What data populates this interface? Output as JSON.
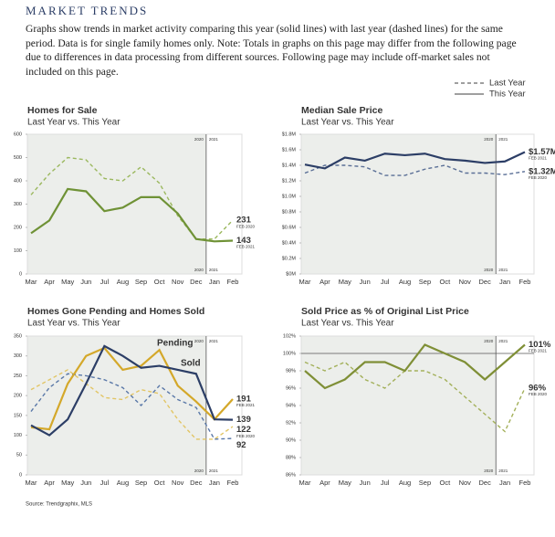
{
  "header": {
    "title": "MARKET TRENDS",
    "description": "Graphs show trends in market activity comparing this year (solid lines) with last year (dashed lines) for the same period. Data is for single family homes only. Note: Totals in graphs on this page may differ from the following page due to differences in data processing from different sources. Following page may include off-market sales not included on this page."
  },
  "legend": [
    {
      "label": "Last Year",
      "dashed": true
    },
    {
      "label": "This Year",
      "dashed": false
    }
  ],
  "source": "Source: Trendgraphix, MLS",
  "chart_data": [
    {
      "type": "line",
      "title": "Homes for Sale",
      "subtitle": "Last Year vs. This Year",
      "categories": [
        "Mar",
        "Apr",
        "May",
        "Jun",
        "Jul",
        "Aug",
        "Sep",
        "Oct",
        "Nov",
        "Dec",
        "Jan",
        "Feb"
      ],
      "ylim": [
        0,
        600
      ],
      "yticks": [
        0,
        100,
        200,
        300,
        400,
        500,
        600
      ],
      "period_labels": [
        "2020",
        "2021"
      ],
      "series": [
        {
          "color": "#9bb85e",
          "dashed": true,
          "values": [
            340,
            430,
            500,
            490,
            410,
            400,
            460,
            390,
            250,
            150,
            150,
            231
          ],
          "end_note": "FEB 2020"
        },
        {
          "color": "#6f9236",
          "dashed": false,
          "values": [
            175,
            230,
            365,
            355,
            270,
            285,
            330,
            330,
            260,
            150,
            140,
            143
          ],
          "end_note": "FEB 2021"
        }
      ]
    },
    {
      "type": "line",
      "title": "Median Sale Price",
      "subtitle": "Last Year vs. This Year",
      "categories": [
        "Mar",
        "Apr",
        "May",
        "Jun",
        "Jul",
        "Aug",
        "Sep",
        "Oct",
        "Nov",
        "Dec",
        "Jan",
        "Feb"
      ],
      "ylim": [
        0,
        1800000
      ],
      "yticks": [
        {
          "value": 0,
          "label": "$0M"
        },
        {
          "value": 200000,
          "label": "$0.2M"
        },
        {
          "value": 400000,
          "label": "$0.4M"
        },
        {
          "value": 600000,
          "label": "$0.6M"
        },
        {
          "value": 800000,
          "label": "$0.8M"
        },
        {
          "value": 1000000,
          "label": "$1.0M"
        },
        {
          "value": 1200000,
          "label": "$1.2M"
        },
        {
          "value": 1400000,
          "label": "$1.4M"
        },
        {
          "value": 1600000,
          "label": "$1.6M"
        },
        {
          "value": 1800000,
          "label": "$1.8M"
        }
      ],
      "period_labels": [
        "2020",
        "2021"
      ],
      "series": [
        {
          "color": "#5a6f96",
          "dashed": true,
          "values": [
            1300000,
            1400000,
            1400000,
            1380000,
            1270000,
            1270000,
            1350000,
            1400000,
            1300000,
            1300000,
            1280000,
            1320000
          ],
          "value_labels": [
            null,
            null,
            null,
            null,
            null,
            null,
            null,
            null,
            null,
            null,
            null,
            "$1.32M"
          ],
          "end_note": "FEB 2020"
        },
        {
          "color": "#2c3e66",
          "dashed": false,
          "values": [
            1410000,
            1360000,
            1500000,
            1460000,
            1550000,
            1530000,
            1550000,
            1480000,
            1460000,
            1430000,
            1450000,
            1570000
          ],
          "value_labels": [
            null,
            null,
            null,
            null,
            null,
            null,
            null,
            null,
            null,
            null,
            null,
            "$1.57M"
          ],
          "end_note": "FEB 2021"
        }
      ]
    },
    {
      "type": "line",
      "title": "Homes Gone Pending and Homes Sold",
      "subtitle": "Last Year vs. This Year",
      "categories": [
        "Mar",
        "Apr",
        "May",
        "Jun",
        "Jul",
        "Aug",
        "Sep",
        "Oct",
        "Nov",
        "Dec",
        "Jan",
        "Feb"
      ],
      "ylim": [
        0,
        350
      ],
      "yticks": [
        0,
        50,
        100,
        150,
        200,
        250,
        300,
        350
      ],
      "period_labels": [
        "2020",
        "2021"
      ],
      "annotations": [
        {
          "text": "Pending",
          "color": "#d4a82a"
        },
        {
          "text": "Sold",
          "color": "#2c3e66"
        }
      ],
      "series": [
        {
          "color": "#e2c565",
          "dashed": true,
          "values": [
            215,
            240,
            265,
            230,
            195,
            190,
            215,
            205,
            140,
            90,
            90,
            122
          ],
          "end_note": "FEB 2020"
        },
        {
          "color": "#5a78a8",
          "dashed": true,
          "values": [
            160,
            220,
            255,
            250,
            240,
            220,
            175,
            225,
            190,
            170,
            90,
            92
          ]
        },
        {
          "color": "#d4a82a",
          "dashed": false,
          "values": [
            120,
            115,
            230,
            300,
            320,
            265,
            275,
            315,
            225,
            185,
            140,
            191
          ],
          "end_note": "FEB 2021"
        },
        {
          "color": "#2c3e66",
          "dashed": false,
          "values": [
            125,
            100,
            140,
            230,
            325,
            300,
            270,
            275,
            265,
            255,
            140,
            139
          ]
        }
      ]
    },
    {
      "type": "line",
      "title": "Sold Price as % of Original List Price",
      "subtitle": "Last Year vs. This Year",
      "categories": [
        "Mar",
        "Apr",
        "May",
        "Jun",
        "Jul",
        "Aug",
        "Sep",
        "Oct",
        "Nov",
        "Dec",
        "Jan",
        "Feb"
      ],
      "ylim": [
        86,
        102
      ],
      "yticks": [
        {
          "value": 86,
          "label": "86%"
        },
        {
          "value": 88,
          "label": "88%"
        },
        {
          "value": 90,
          "label": "90%"
        },
        {
          "value": 92,
          "label": "92%"
        },
        {
          "value": 94,
          "label": "94%"
        },
        {
          "value": 96,
          "label": "96%"
        },
        {
          "value": 98,
          "label": "98%"
        },
        {
          "value": 100,
          "label": "100%"
        },
        {
          "value": 102,
          "label": "102%"
        }
      ],
      "reference_line": 100,
      "period_labels": [
        "2020",
        "2021"
      ],
      "series": [
        {
          "color": "#a3b05a",
          "dashed": true,
          "values": [
            99,
            98,
            99,
            97,
            96,
            98,
            98,
            97,
            95,
            93,
            91,
            96
          ],
          "value_labels": [
            null,
            null,
            null,
            null,
            null,
            null,
            null,
            null,
            null,
            null,
            null,
            "96%"
          ],
          "end_note": "FEB 2020"
        },
        {
          "color": "#7f8f36",
          "dashed": false,
          "values": [
            98,
            96,
            97,
            99,
            99,
            98,
            101,
            100,
            99,
            97,
            99,
            101
          ],
          "value_labels": [
            null,
            null,
            null,
            null,
            null,
            null,
            null,
            null,
            null,
            null,
            null,
            "101%"
          ],
          "end_note": "FEB 2021"
        }
      ]
    }
  ]
}
